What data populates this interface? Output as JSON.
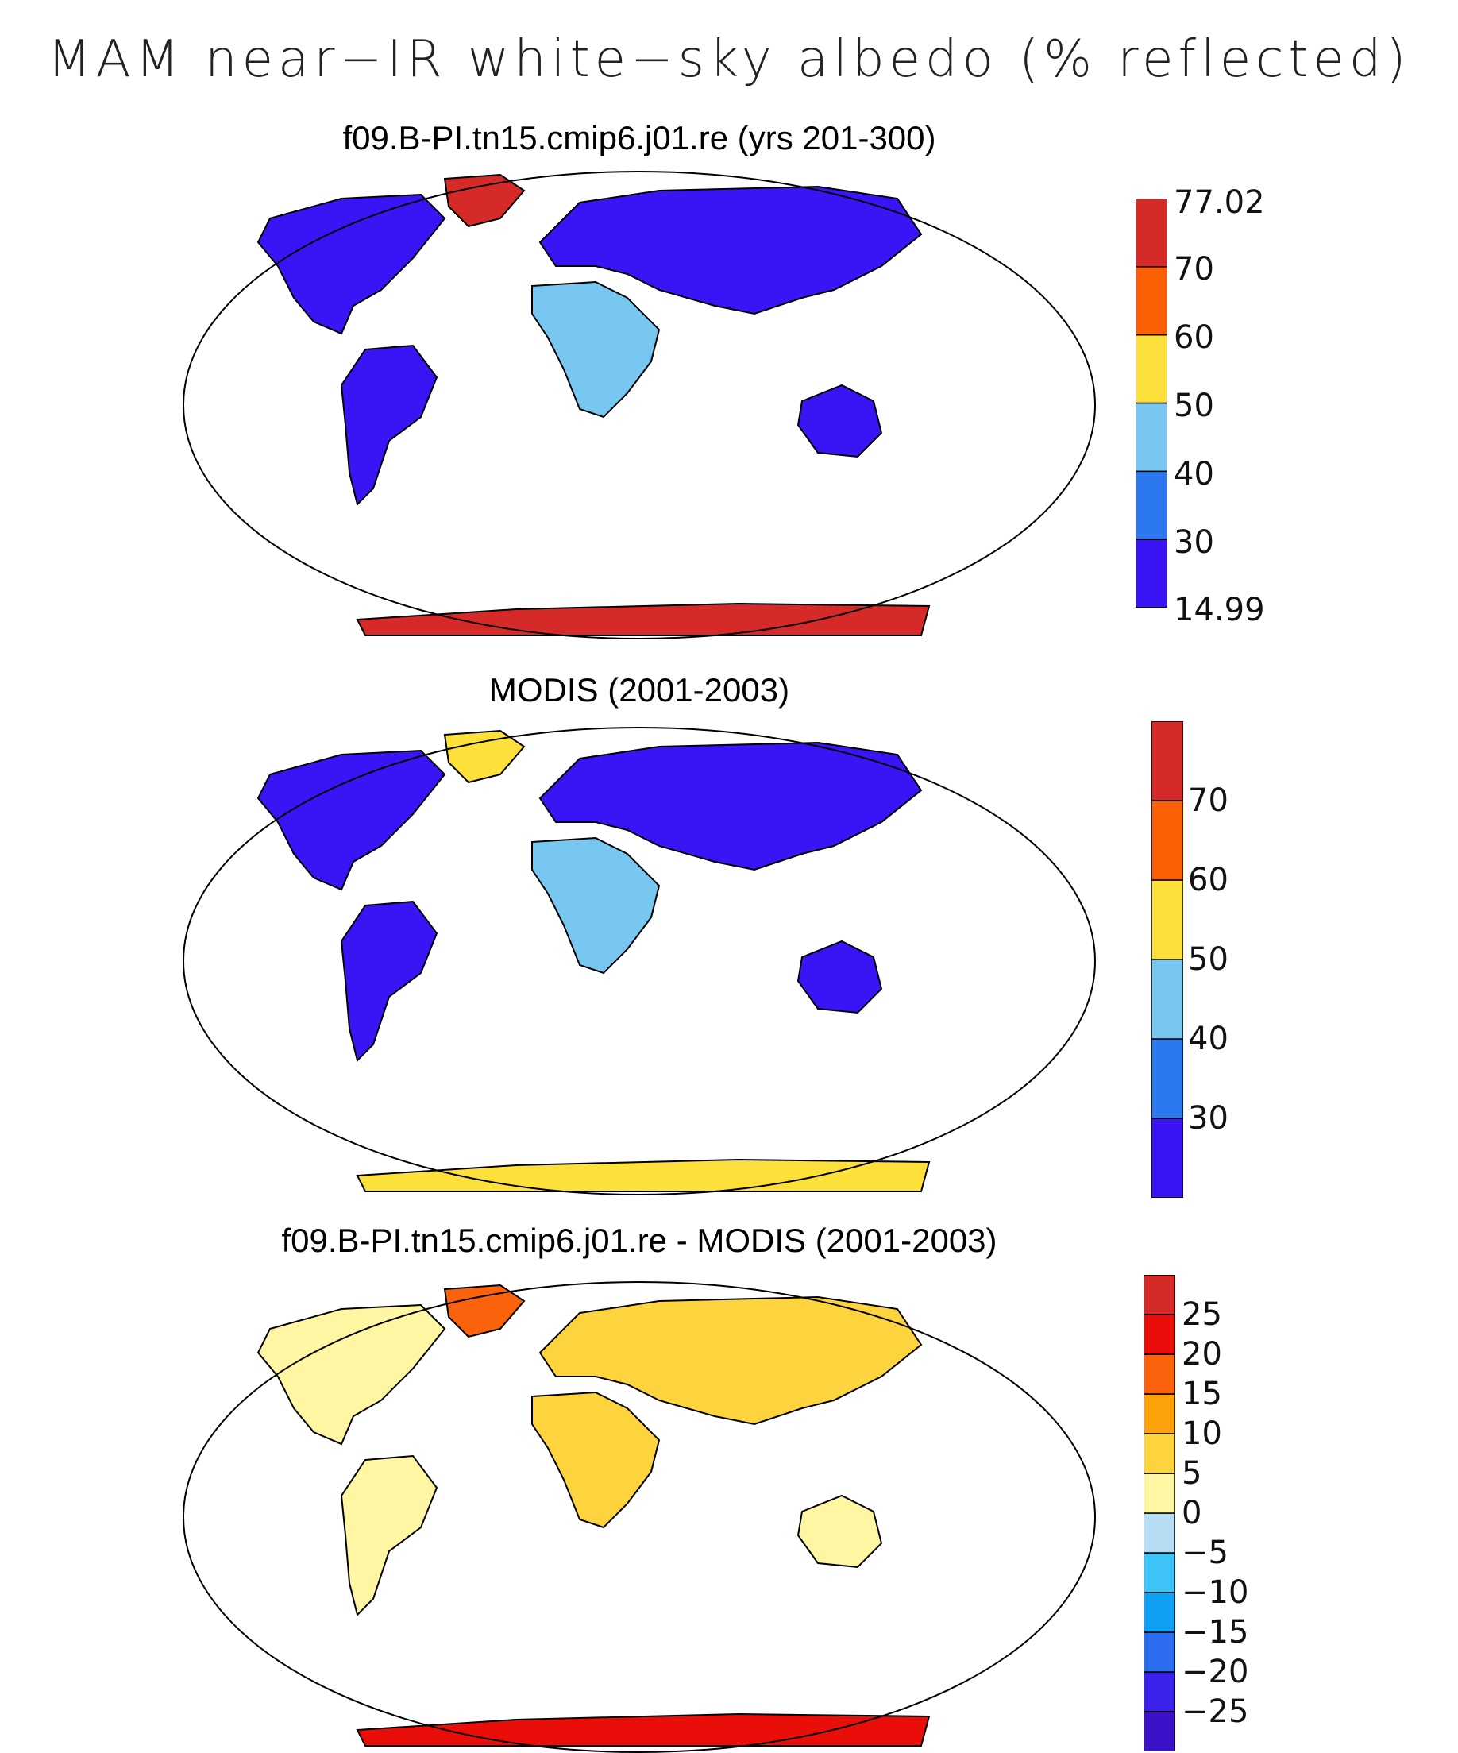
{
  "title": "MAM near−IR white−sky albedo (% reflected)",
  "panels": [
    {
      "id": "model",
      "title": "f09.B-PI.tn15.cmip6.j01.re (yrs 201-300)",
      "colors": [
        "#3a14f5",
        "#2c78ee",
        "#78c7f0",
        "#fee03a",
        "#fd5f03",
        "#d52a28"
      ],
      "labels": [
        "14.99",
        "30",
        "40",
        "50",
        "60",
        "70",
        "77.02"
      ]
    },
    {
      "id": "obs",
      "title": "MODIS (2001-2003)",
      "colors": [
        "#3a14f5",
        "#2c78ee",
        "#78c7f0",
        "#fee03a",
        "#fd5f03",
        "#d52a28"
      ],
      "labels": [
        "30",
        "40",
        "50",
        "60",
        "70"
      ]
    },
    {
      "id": "diff",
      "title": "f09.B-PI.tn15.cmip6.j01.re - MODIS (2001-2003)",
      "colors": [
        "#3b12c8",
        "#3a22ea",
        "#2c6cf0",
        "#10a0f4",
        "#3ec3f6",
        "#b4dcf2",
        "#fef6a2",
        "#fdd43e",
        "#fda20a",
        "#fb620c",
        "#e90e0a",
        "#d52a28"
      ],
      "labels": [
        "−25",
        "−20",
        "−15",
        "−10",
        "−5",
        "0",
        "5",
        "10",
        "15",
        "20",
        "25"
      ]
    }
  ]
}
